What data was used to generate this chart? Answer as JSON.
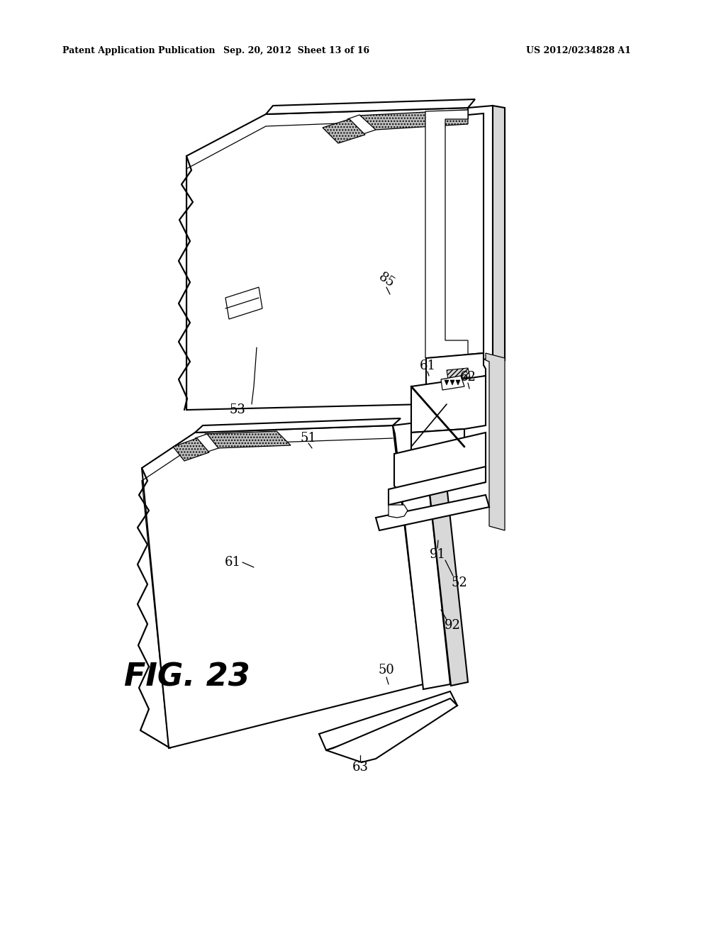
{
  "bg_color": "#ffffff",
  "header_left": "Patent Application Publication",
  "header_mid": "Sep. 20, 2012  Sheet 13 of 16",
  "header_right": "US 2012/0234828 A1",
  "fig_label": "FIG. 23",
  "header_fontsize": 9,
  "figlabel_fontsize": 32,
  "label_fontsize": 13,
  "lw_main": 1.5,
  "lw_thin": 0.9,
  "hatch": "....",
  "hatch_fc": "#bbbbbb",
  "gray_fc": "#d8d8d8",
  "white_fc": "#ffffff"
}
